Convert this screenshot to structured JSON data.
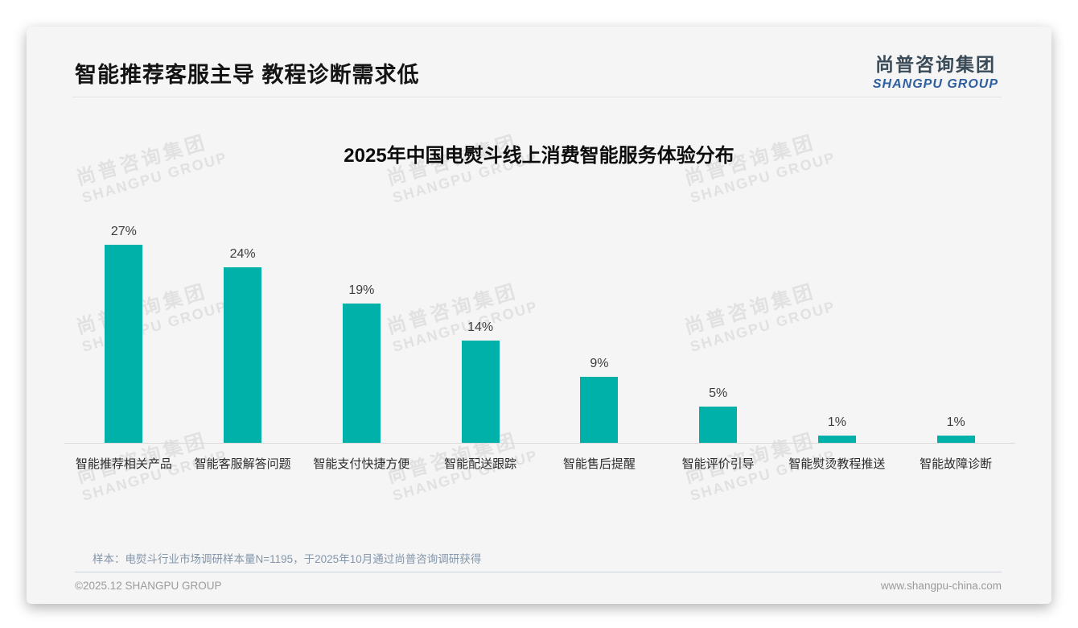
{
  "page": {
    "header_title": "智能推荐客服主导 教程诊断需求低",
    "logo": {
      "cn": "尚普咨询集团",
      "en": "SHANGPU GROUP"
    },
    "watermark": {
      "cn": "尚普咨询集团",
      "en": "SHANGPU GROUP"
    },
    "sample_note": "样本：电熨斗行业市场调研样本量N=1195，于2025年10月通过尚普咨询调研获得",
    "footer": {
      "copyright": "©2025.12 SHANGPU GROUP",
      "website": "www.shangpu-china.com"
    }
  },
  "colors": {
    "bar": "#00b1a9",
    "logo_blue": "#2e5f9e",
    "note_blue": "#8496aa"
  },
  "chart_data": {
    "type": "bar",
    "title": "2025年中国电熨斗线上消费智能服务体验分布",
    "categories": [
      "智能推荐相关产品",
      "智能客服解答问题",
      "智能支付快捷方便",
      "智能配送跟踪",
      "智能售后提醒",
      "智能评价引导",
      "智能熨烫教程推送",
      "智能故障诊断"
    ],
    "values": [
      27,
      24,
      19,
      14,
      9,
      5,
      1,
      1
    ],
    "unit": "%",
    "xlabel": "",
    "ylabel": "",
    "ylim": [
      0,
      30
    ],
    "grid": false,
    "legend": false,
    "data_labels": "above-bars",
    "bar_color": "#00b1a9"
  }
}
